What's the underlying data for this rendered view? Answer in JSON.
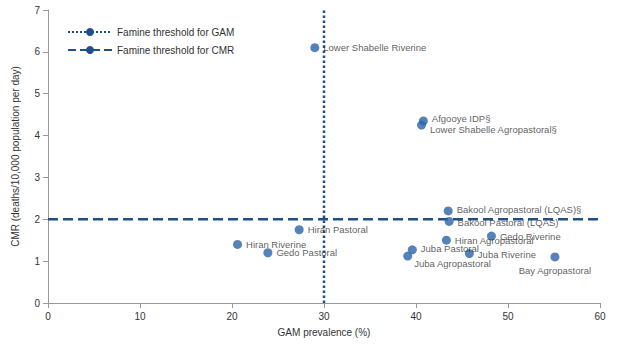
{
  "chart_data": {
    "type": "scatter",
    "xlabel": "GAM prevalence (%)",
    "ylabel": "CMR (deaths/10,000 population per day)",
    "labels": [
      "Lower Shabelle Riverine",
      "Afgooye IDP§",
      "Lower Shabelle Agropastoral§",
      "Bakool Agropastoral (LQAS)§",
      "Bakool Pastoral (LQAS)",
      "Gedo Riverine",
      "Hiran Agropastoral",
      "Hiran Pastoral",
      "Hiran Riverine",
      "Gedo Pastoral",
      "Juba Pastoral",
      "Juba Agropastoral",
      "Juba Riverine",
      "Bay Agropastoral"
    ],
    "x": [
      29.0,
      40.8,
      40.6,
      43.5,
      43.6,
      48.2,
      43.3,
      27.3,
      20.6,
      23.9,
      39.6,
      39.1,
      45.8,
      55.1
    ],
    "values": [
      6.1,
      4.35,
      4.25,
      2.2,
      1.95,
      1.6,
      1.5,
      1.75,
      1.4,
      1.2,
      1.27,
      1.12,
      1.18,
      1.1
    ],
    "color": "#2a64a8",
    "marker": "circle",
    "xlim": [
      0,
      60
    ],
    "xticks": [
      0,
      10,
      20,
      30,
      40,
      50,
      60
    ],
    "ylim": [
      0,
      7
    ],
    "yticks": [
      0,
      1,
      2,
      3,
      4,
      5,
      6,
      7
    ],
    "grid": false,
    "legend": "top-left",
    "thresholds": [
      {
        "name": "Famine threshold for GAM",
        "axis": "x",
        "value": 30,
        "line_style": "dotted",
        "color": "#1f4e8c"
      },
      {
        "name": "Famine threshold for CMR",
        "axis": "y",
        "value": 2,
        "line_style": "dashed",
        "color": "#1f4e8c"
      }
    ]
  }
}
